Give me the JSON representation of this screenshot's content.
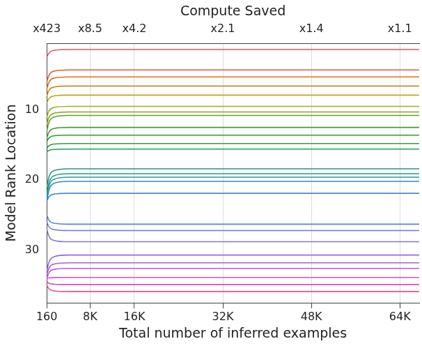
{
  "chart_data": {
    "type": "line",
    "xlabel": "Total number of inferred examples",
    "ylabel": "Model Rank Location",
    "x2label": "Compute Saved",
    "x": [
      160,
      600,
      1500,
      4000,
      67500
    ],
    "xlim": [
      160,
      67500
    ],
    "xticks": [
      160,
      {
        "value": 8000,
        "label": "8K"
      },
      {
        "value": 16000,
        "label": "16K"
      },
      {
        "value": 32000,
        "label": "32K"
      },
      {
        "value": 48000,
        "label": "48K"
      },
      {
        "value": 64000,
        "label": "64K"
      }
    ],
    "x2lim": [
      160,
      67500
    ],
    "x2ticks": [
      {
        "value": 160,
        "label": "x423"
      },
      {
        "value": 8000,
        "label": "x8.5"
      },
      {
        "value": 16000,
        "label": "x4.2"
      },
      {
        "value": 32000,
        "label": "x2.1"
      },
      {
        "value": 48000,
        "label": "x1.4"
      },
      {
        "value": 64000,
        "label": "x1.1"
      }
    ],
    "ylim": [
      37.5,
      0.5
    ],
    "yticks": [
      10,
      20,
      30
    ],
    "grid": "x",
    "series": [
      {
        "color": "hsl(0,75%,62%)",
        "values": [
          2.5,
          1.84,
          1.51,
          1.4,
          1.4
        ]
      },
      {
        "color": "hsl(13,75%,55%)",
        "values": [
          6,
          4.98,
          4.47,
          4.3,
          4.3
        ]
      },
      {
        "color": "hsl(26,75%,50%)",
        "values": [
          7,
          5.98,
          5.47,
          5.3,
          5.3
        ]
      },
      {
        "color": "hsl(40,75%,45%)",
        "values": [
          8,
          7.16,
          6.74,
          6.6,
          6.6
        ]
      },
      {
        "color": "hsl(53,75%,42%)",
        "values": [
          9,
          8.34,
          8.01,
          7.9,
          7.9
        ]
      },
      {
        "color": "hsl(66,70%,40%)",
        "values": [
          11,
          10.1,
          9.65,
          9.5,
          9.5
        ]
      },
      {
        "color": "hsl(79,65%,40%)",
        "values": [
          12,
          10.98,
          10.47,
          10.3,
          10.3
        ]
      },
      {
        "color": "hsl(92,60%,40%)",
        "values": [
          13,
          11.68,
          11.02,
          10.8,
          10.8
        ]
      },
      {
        "color": "hsl(106,55%,40%)",
        "values": [
          14,
          13.1,
          12.65,
          12.5,
          12.5
        ]
      },
      {
        "color": "hsl(119,55%,40%)",
        "values": [
          14.5,
          13.96,
          13.69,
          13.6,
          13.6
        ]
      },
      {
        "color": "hsl(132,55%,40%)",
        "values": [
          15.5,
          15.08,
          14.87,
          14.8,
          14.8
        ]
      },
      {
        "color": "hsl(145,60%,38%)",
        "values": [
          16,
          15.76,
          15.64,
          15.6,
          15.6
        ]
      },
      {
        "color": "hsl(158,60%,38%)",
        "values": [
          21,
          19.44,
          18.66,
          18.4,
          18.4
        ]
      },
      {
        "color": "hsl(172,60%,38%)",
        "values": [
          22,
          20.26,
          19.39,
          19.1,
          19.1
        ]
      },
      {
        "color": "hsl(185,60%,40%)",
        "values": [
          22.5,
          20.76,
          19.89,
          19.6,
          19.6
        ]
      },
      {
        "color": "hsl(198,60%,45%)",
        "values": [
          23,
          21.32,
          20.48,
          20.2,
          20.2
        ]
      },
      {
        "color": "hsl(211,65%,55%)",
        "values": [
          23,
          22.34,
          22.01,
          21.9,
          21.9
        ]
      },
      {
        "color": "hsl(224,65%,62%)",
        "values": [
          25,
          25.78,
          26.17,
          26.3,
          26.3
        ]
      },
      {
        "color": "hsl(238,65%,66%)",
        "values": [
          26,
          26.72,
          27.08,
          27.2,
          27.2
        ]
      },
      {
        "color": "hsl(251,65%,66%)",
        "values": [
          27,
          28.08,
          28.62,
          28.8,
          28.8
        ]
      },
      {
        "color": "hsl(264,65%,64%)",
        "values": [
          33,
          31.62,
          30.93,
          30.7,
          30.7
        ]
      },
      {
        "color": "hsl(277,65%,62%)",
        "values": [
          33.5,
          32.48,
          31.97,
          31.8,
          31.8
        ]
      },
      {
        "color": "hsl(290,65%,60%)",
        "values": [
          34,
          33.16,
          32.74,
          32.6,
          32.6
        ]
      },
      {
        "color": "hsl(304,65%,58%)",
        "values": [
          34,
          33.94,
          33.91,
          33.9,
          33.9
        ]
      },
      {
        "color": "hsl(317,70%,58%)",
        "values": [
          34.5,
          34.74,
          34.86,
          34.9,
          34.9
        ]
      },
      {
        "color": "hsl(330,75%,60%)",
        "values": [
          35,
          35.54,
          35.81,
          35.9,
          35.9
        ]
      }
    ]
  }
}
